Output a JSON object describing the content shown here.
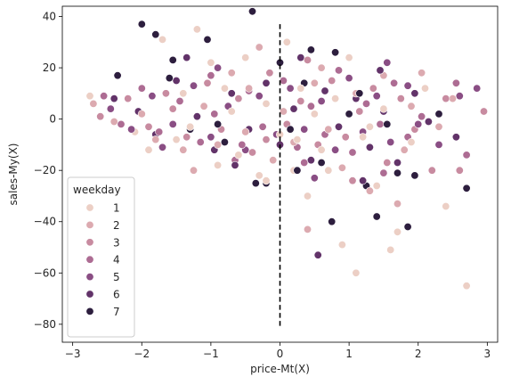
{
  "chart_data": {
    "type": "scatter",
    "xlabel": "price-Mt(X)",
    "ylabel": "sales-My(X)",
    "xlim": [
      -3.15,
      3.15
    ],
    "ylim": [
      -87,
      44
    ],
    "x_ticks": [
      -3,
      -2,
      -1,
      0,
      1,
      2,
      3
    ],
    "y_ticks": [
      -80,
      -60,
      -40,
      -20,
      0,
      20,
      40
    ],
    "grid": false,
    "legend": {
      "title": "weekday",
      "placement": "lower-left",
      "entries": [
        "1",
        "2",
        "3",
        "4",
        "5",
        "6",
        "7"
      ]
    },
    "hue_colors": [
      "#eccfc5",
      "#dcaab0",
      "#c88ba0",
      "#ad6c93",
      "#8a4e84",
      "#623369",
      "#2d1e3e"
    ],
    "vline": {
      "x": 0,
      "y_range": [
        -81,
        37
      ],
      "style": "dashed",
      "color": "#000000"
    },
    "series": [
      {
        "name": "1",
        "points": [
          [
            -2.75,
            9
          ],
          [
            -2.1,
            -5
          ],
          [
            -1.9,
            -12
          ],
          [
            -1.7,
            31
          ],
          [
            -1.5,
            -8
          ],
          [
            -1.3,
            -3
          ],
          [
            -1.2,
            35
          ],
          [
            -1.0,
            22
          ],
          [
            -0.9,
            -18
          ],
          [
            -0.8,
            12
          ],
          [
            -0.6,
            -14
          ],
          [
            -0.5,
            24
          ],
          [
            -0.3,
            -22
          ],
          [
            -0.2,
            6
          ],
          [
            -0.2,
            -24
          ],
          [
            0.0,
            -6
          ],
          [
            0.1,
            30
          ],
          [
            0.2,
            -20
          ],
          [
            0.3,
            12
          ],
          [
            0.4,
            -30
          ],
          [
            0.5,
            2
          ],
          [
            0.6,
            -12
          ],
          [
            0.8,
            8
          ],
          [
            0.9,
            -49
          ],
          [
            1.0,
            24
          ],
          [
            1.2,
            -7
          ],
          [
            1.4,
            -26
          ],
          [
            1.5,
            4
          ],
          [
            1.6,
            -51
          ],
          [
            1.7,
            -44
          ],
          [
            1.9,
            -9
          ],
          [
            2.1,
            12
          ],
          [
            2.4,
            -34
          ],
          [
            2.7,
            -65
          ],
          [
            1.1,
            -60
          ],
          [
            -1.4,
            10
          ],
          [
            0.7,
            -20
          ],
          [
            -0.7,
            3
          ],
          [
            0.25,
            -8
          ],
          [
            1.3,
            -3
          ]
        ]
      },
      {
        "name": "2",
        "points": [
          [
            -2.7,
            6
          ],
          [
            -2.4,
            -1
          ],
          [
            -2.0,
            2
          ],
          [
            -1.8,
            -8
          ],
          [
            -1.6,
            16
          ],
          [
            -1.4,
            -12
          ],
          [
            -1.1,
            5
          ],
          [
            -0.9,
            -10
          ],
          [
            -0.7,
            18
          ],
          [
            -0.5,
            -5
          ],
          [
            -0.3,
            28
          ],
          [
            -0.1,
            -16
          ],
          [
            0.05,
            3
          ],
          [
            0.2,
            -9
          ],
          [
            0.4,
            -43
          ],
          [
            0.5,
            14
          ],
          [
            0.7,
            -4
          ],
          [
            0.9,
            -19
          ],
          [
            1.1,
            10
          ],
          [
            1.3,
            -28
          ],
          [
            1.5,
            17
          ],
          [
            1.7,
            -33
          ],
          [
            1.9,
            5
          ],
          [
            2.05,
            18
          ],
          [
            2.3,
            -3
          ],
          [
            2.5,
            8
          ],
          [
            -1.25,
            -20
          ],
          [
            0.6,
            20
          ],
          [
            -0.45,
            12
          ],
          [
            1.8,
            -12
          ]
        ]
      },
      {
        "name": "3",
        "points": [
          [
            -2.6,
            1
          ],
          [
            -2.2,
            8
          ],
          [
            -1.9,
            -3
          ],
          [
            -1.65,
            10
          ],
          [
            -1.35,
            -7
          ],
          [
            -1.05,
            14
          ],
          [
            -0.85,
            -4
          ],
          [
            -0.6,
            8
          ],
          [
            -0.4,
            -13
          ],
          [
            -0.15,
            18
          ],
          [
            0.1,
            -2
          ],
          [
            0.3,
            7
          ],
          [
            0.55,
            -10
          ],
          [
            0.75,
            15
          ],
          [
            0.95,
            -7
          ],
          [
            1.15,
            3
          ],
          [
            1.35,
            12
          ],
          [
            1.55,
            -17
          ],
          [
            1.75,
            8
          ],
          [
            1.95,
            -4
          ],
          [
            2.2,
            -20
          ],
          [
            2.6,
            -20
          ],
          [
            2.95,
            3
          ],
          [
            0.4,
            23
          ],
          [
            -1.55,
            4
          ],
          [
            1.05,
            -24
          ],
          [
            -0.2,
            -8
          ],
          [
            2.4,
            8
          ]
        ]
      },
      {
        "name": "4",
        "points": [
          [
            -2.55,
            9
          ],
          [
            -2.3,
            -2
          ],
          [
            -2.0,
            12
          ],
          [
            -1.75,
            -5
          ],
          [
            -1.45,
            7
          ],
          [
            -1.15,
            -9
          ],
          [
            -0.95,
            2
          ],
          [
            -0.65,
            -16
          ],
          [
            -0.45,
            11
          ],
          [
            -0.25,
            -3
          ],
          [
            0.05,
            15
          ],
          [
            0.25,
            -11
          ],
          [
            0.45,
            5
          ],
          [
            0.65,
            -6
          ],
          [
            0.85,
            19
          ],
          [
            1.05,
            -13
          ],
          [
            1.25,
            6
          ],
          [
            1.45,
            -2
          ],
          [
            1.65,
            14
          ],
          [
            1.85,
            -7
          ],
          [
            2.05,
            1
          ],
          [
            2.55,
            14
          ],
          [
            2.7,
            -14
          ],
          [
            -1.0,
            17
          ],
          [
            0.35,
            -17
          ],
          [
            1.5,
            -21
          ],
          [
            -0.55,
            -10
          ]
        ]
      },
      {
        "name": "5",
        "points": [
          [
            -2.45,
            4
          ],
          [
            -2.15,
            -4
          ],
          [
            -1.85,
            9
          ],
          [
            -1.55,
            -2
          ],
          [
            -1.25,
            13
          ],
          [
            -1.0,
            -7
          ],
          [
            -0.75,
            5
          ],
          [
            -0.5,
            -12
          ],
          [
            -0.3,
            9
          ],
          [
            -0.05,
            -6
          ],
          [
            0.15,
            12
          ],
          [
            0.35,
            -4
          ],
          [
            0.6,
            7
          ],
          [
            0.8,
            -12
          ],
          [
            1.0,
            16
          ],
          [
            1.2,
            -5
          ],
          [
            1.4,
            9
          ],
          [
            1.6,
            -9
          ],
          [
            1.85,
            13
          ],
          [
            2.0,
            -2
          ],
          [
            2.3,
            -10
          ],
          [
            2.6,
            9
          ],
          [
            2.85,
            12
          ],
          [
            -0.9,
            20
          ],
          [
            0.5,
            -23
          ],
          [
            1.55,
            22
          ],
          [
            -1.7,
            -11
          ]
        ]
      },
      {
        "name": "6",
        "points": [
          [
            -2.4,
            8
          ],
          [
            -2.05,
            3
          ],
          [
            -1.8,
            -6
          ],
          [
            -1.5,
            15
          ],
          [
            -1.2,
            1
          ],
          [
            -0.95,
            -12
          ],
          [
            -0.7,
            10
          ],
          [
            -0.45,
            -4
          ],
          [
            -0.2,
            14
          ],
          [
            0.0,
            -10
          ],
          [
            0.2,
            4
          ],
          [
            0.45,
            -16
          ],
          [
            0.65,
            11
          ],
          [
            0.85,
            -3
          ],
          [
            1.1,
            8
          ],
          [
            1.3,
            -11
          ],
          [
            1.5,
            3
          ],
          [
            1.7,
            -17
          ],
          [
            1.95,
            10
          ],
          [
            2.15,
            -1
          ],
          [
            1.2,
            -24
          ],
          [
            -1.35,
            24
          ],
          [
            0.3,
            24
          ],
          [
            1.45,
            19
          ],
          [
            -0.65,
            -18
          ],
          [
            0.55,
            -53
          ],
          [
            2.55,
            -7
          ]
        ]
      },
      {
        "name": "7",
        "points": [
          [
            -2.35,
            17
          ],
          [
            -2.0,
            37
          ],
          [
            -1.8,
            33
          ],
          [
            -1.55,
            23
          ],
          [
            -1.3,
            -4
          ],
          [
            -1.05,
            31
          ],
          [
            -0.8,
            -9
          ],
          [
            -0.4,
            42
          ],
          [
            -0.35,
            -25
          ],
          [
            -0.2,
            -25
          ],
          [
            0.0,
            22
          ],
          [
            0.15,
            -4
          ],
          [
            0.35,
            14
          ],
          [
            0.45,
            27
          ],
          [
            0.6,
            -17
          ],
          [
            0.75,
            -40
          ],
          [
            0.8,
            26
          ],
          [
            1.0,
            2
          ],
          [
            1.25,
            -26
          ],
          [
            1.4,
            -38
          ],
          [
            1.55,
            -2
          ],
          [
            1.7,
            -21
          ],
          [
            1.85,
            -42
          ],
          [
            1.95,
            -22
          ],
          [
            2.3,
            2
          ],
          [
            2.7,
            -27
          ],
          [
            -1.6,
            16
          ],
          [
            -0.9,
            -2
          ],
          [
            1.15,
            10
          ],
          [
            0.25,
            -20
          ]
        ]
      }
    ]
  }
}
